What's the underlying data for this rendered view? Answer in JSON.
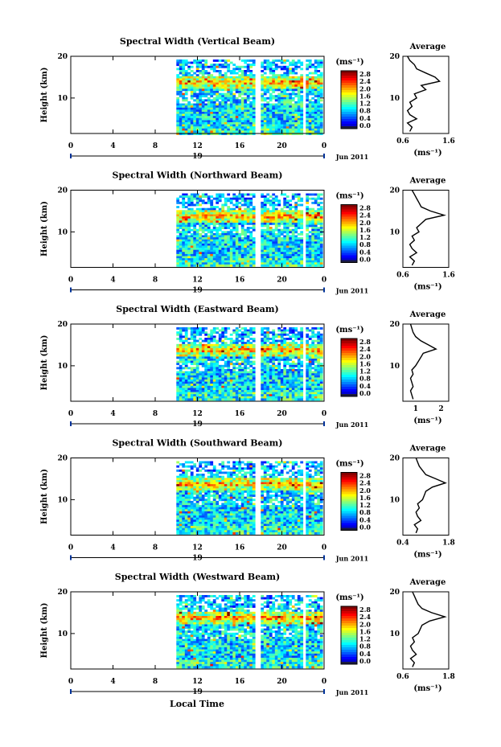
{
  "figure": {
    "x_label_bottom": "Local Time",
    "colorbar_unit": "(ms⁻¹)",
    "avg_unit": "(ms⁻¹)",
    "avg_title": "Average",
    "y_label": "Height (km)",
    "date_label": "Jun 2011",
    "day_label": "19"
  },
  "chart_data": [
    {
      "type": "heatmap",
      "title": "Spectral Width (Vertical Beam)",
      "xlabel": "",
      "ylabel": "Height (km)",
      "x_ticks": [
        "0",
        "4",
        "8",
        "12",
        "16",
        "20",
        "0"
      ],
      "xlim": [
        0,
        24
      ],
      "ylim": [
        1.5,
        20
      ],
      "y_ticks": [
        "20",
        "10"
      ],
      "colorbar_ticks": [
        "2.8",
        "2.4",
        "2.0",
        "1.6",
        "1.2",
        "0.8",
        "0.4",
        "0.0"
      ],
      "colorbar_range": [
        0.0,
        2.8
      ],
      "data_start_hour": 10,
      "average_profile": {
        "xlim": [
          0.6,
          1.6
        ],
        "x_ticks": [
          "0.6",
          "1.6"
        ],
        "heights": [
          2,
          3,
          4,
          5,
          6,
          7,
          8,
          9,
          10,
          11,
          12,
          13,
          14,
          15,
          16,
          17,
          18,
          19,
          20
        ],
        "values": [
          0.75,
          0.8,
          0.7,
          0.9,
          0.75,
          0.7,
          0.8,
          0.75,
          0.9,
          0.85,
          1.1,
          1.0,
          1.4,
          1.3,
          1.1,
          0.9,
          0.85,
          0.75,
          0.7
        ]
      }
    },
    {
      "type": "heatmap",
      "title": "Spectral Width (Northward Beam)",
      "xlabel": "",
      "ylabel": "Height (km)",
      "x_ticks": [
        "0",
        "4",
        "8",
        "12",
        "16",
        "20",
        "0"
      ],
      "xlim": [
        0,
        24
      ],
      "ylim": [
        1.5,
        20
      ],
      "y_ticks": [
        "20",
        "10"
      ],
      "colorbar_ticks": [
        "2.8",
        "2.4",
        "2.0",
        "1.6",
        "1.2",
        "0.8",
        "0.4",
        "0.0"
      ],
      "colorbar_range": [
        0.0,
        2.8
      ],
      "data_start_hour": 10,
      "average_profile": {
        "xlim": [
          0.6,
          1.6
        ],
        "x_ticks": [
          "0.6",
          "1.6"
        ],
        "heights": [
          2,
          3,
          4,
          5,
          6,
          7,
          8,
          9,
          10,
          11,
          12,
          13,
          14,
          15,
          16,
          17,
          18,
          19,
          20
        ],
        "values": [
          0.8,
          0.85,
          0.75,
          0.9,
          0.8,
          0.75,
          0.85,
          0.8,
          0.95,
          0.9,
          1.0,
          1.1,
          1.5,
          1.2,
          1.0,
          0.95,
          0.9,
          0.85,
          0.8
        ]
      }
    },
    {
      "type": "heatmap",
      "title": "Spectral Width (Eastward Beam)",
      "xlabel": "",
      "ylabel": "Height (km)",
      "x_ticks": [
        "0",
        "4",
        "8",
        "12",
        "16",
        "20",
        "0"
      ],
      "xlim": [
        0,
        24
      ],
      "ylim": [
        1.5,
        20
      ],
      "y_ticks": [
        "20",
        "10"
      ],
      "colorbar_ticks": [
        "2.8",
        "2.4",
        "2.0",
        "1.6",
        "1.2",
        "0.8",
        "0.4",
        "0.0"
      ],
      "colorbar_range": [
        0.0,
        2.8
      ],
      "data_start_hour": 10,
      "average_profile": {
        "xlim": [
          0.5,
          2.3
        ],
        "x_ticks": [
          "1",
          "2"
        ],
        "heights": [
          2,
          3,
          4,
          5,
          6,
          7,
          8,
          9,
          10,
          11,
          12,
          13,
          14,
          15,
          16,
          17,
          18,
          19,
          20
        ],
        "values": [
          0.9,
          0.85,
          0.8,
          0.9,
          0.85,
          0.8,
          0.9,
          0.85,
          1.0,
          1.1,
          1.2,
          1.3,
          1.8,
          1.5,
          1.2,
          1.0,
          0.9,
          0.85,
          0.8
        ]
      }
    },
    {
      "type": "heatmap",
      "title": "Spectral Width (Southward Beam)",
      "xlabel": "",
      "ylabel": "Height (km)",
      "x_ticks": [
        "0",
        "4",
        "8",
        "12",
        "16",
        "20",
        "0"
      ],
      "xlim": [
        0,
        24
      ],
      "ylim": [
        1.5,
        20
      ],
      "y_ticks": [
        "20",
        "10"
      ],
      "colorbar_ticks": [
        "2.8",
        "2.4",
        "2.0",
        "1.6",
        "1.2",
        "0.8",
        "0.4",
        "0.0"
      ],
      "colorbar_range": [
        0.0,
        2.8
      ],
      "data_start_hour": 10,
      "average_profile": {
        "xlim": [
          0.4,
          1.8
        ],
        "x_ticks": [
          "0.4",
          "1.8"
        ],
        "heights": [
          2,
          3,
          4,
          5,
          6,
          7,
          8,
          9,
          10,
          11,
          12,
          13,
          14,
          15,
          16,
          17,
          18,
          19,
          20
        ],
        "values": [
          0.8,
          0.85,
          0.75,
          0.95,
          0.85,
          0.8,
          0.9,
          0.85,
          1.0,
          1.05,
          1.1,
          1.3,
          1.7,
          1.4,
          1.1,
          1.0,
          0.9,
          0.85,
          0.8
        ]
      }
    },
    {
      "type": "heatmap",
      "title": "Spectral Width (Westward Beam)",
      "xlabel": "",
      "ylabel": "Height (km)",
      "x_ticks": [
        "0",
        "4",
        "8",
        "12",
        "16",
        "20",
        "0"
      ],
      "xlim": [
        0,
        24
      ],
      "ylim": [
        1.5,
        20
      ],
      "y_ticks": [
        "20",
        "10"
      ],
      "colorbar_ticks": [
        "2.8",
        "2.4",
        "2.0",
        "1.6",
        "1.2",
        "0.8",
        "0.4",
        "0.0"
      ],
      "colorbar_range": [
        0.0,
        2.8
      ],
      "data_start_hour": 10,
      "average_profile": {
        "xlim": [
          0.6,
          1.8
        ],
        "x_ticks": [
          "0.6",
          "1.8"
        ],
        "heights": [
          2,
          3,
          4,
          5,
          6,
          7,
          8,
          9,
          10,
          11,
          12,
          13,
          14,
          15,
          16,
          17,
          18,
          19,
          20
        ],
        "values": [
          0.85,
          0.9,
          0.8,
          0.95,
          0.85,
          0.8,
          0.9,
          0.85,
          1.0,
          1.05,
          1.1,
          1.3,
          1.7,
          1.35,
          1.1,
          1.0,
          0.95,
          0.9,
          0.85
        ]
      }
    }
  ]
}
